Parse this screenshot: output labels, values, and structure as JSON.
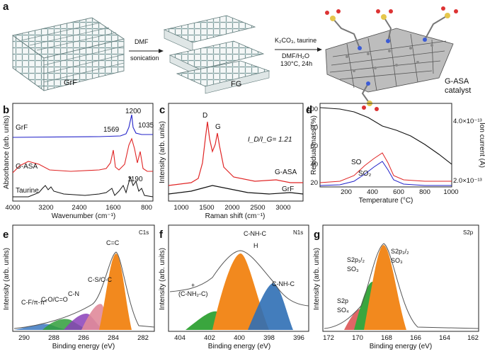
{
  "panels": {
    "a": {
      "label": "a",
      "step1": {
        "line1": "DMF",
        "line2": "sonication"
      },
      "step2": {
        "line1": "K₂CO₃, taurine",
        "line2": "DMF/H₂O",
        "line3": "130°C, 24h"
      },
      "material1": "GrF",
      "material2": "FG",
      "product": {
        "line1": "G-ASA",
        "line2": "catalyst"
      }
    },
    "b": {
      "label": "b",
      "ylabel": "Absorbance (arb. units)",
      "xlabel": "Wavenumber (cm⁻¹)",
      "ticks": [
        "4000",
        "3200",
        "2400",
        "1600",
        "800"
      ],
      "series": [
        "GrF",
        "G-ASA",
        "Taurine"
      ],
      "peaks": [
        "1569",
        "1200",
        "1035",
        "1190"
      ]
    },
    "c": {
      "label": "c",
      "ylabel": "Intensity (arb. units)",
      "xlabel": "Raman shift (cm⁻¹)",
      "ticks": [
        "1000",
        "1500",
        "2000",
        "2500",
        "3000"
      ],
      "series": [
        "G-ASA",
        "GrF"
      ],
      "peaks": [
        "D",
        "G"
      ],
      "ratio_text": "I_D/I_G= 1.21"
    },
    "d": {
      "label": "d",
      "ylabel": "Residual mass (%)",
      "y2label": "Ion current (A)",
      "xlabel": "Temperature (°C)",
      "xticks": [
        "200",
        "400",
        "600",
        "800",
        "1000"
      ],
      "yticks": [
        "100",
        "80",
        "60",
        "40",
        "20"
      ],
      "y2ticks": [
        "4.0×10⁻¹³",
        "2.0×10⁻¹³"
      ],
      "series": [
        "SO",
        "SO₂"
      ]
    },
    "e": {
      "label": "e",
      "corner": "C1s",
      "ylabel": "Intensity (arb. units)",
      "xlabel": "Binding energy (eV)",
      "ticks": [
        "290",
        "288",
        "286",
        "284",
        "282"
      ],
      "components": [
        "C-F/π-π*",
        "C-O/C=O",
        "C-N",
        "C-S/C-C",
        "C=C"
      ]
    },
    "f": {
      "label": "f",
      "corner": "N1s",
      "ylabel": "Intensity (arb. units)",
      "xlabel": "Binding energy (eV)",
      "ticks": [
        "404",
        "402",
        "400",
        "398",
        "396"
      ],
      "components": [
        "(C-NH₂-C)",
        "C-NH-C",
        "C-NH-C"
      ],
      "plus": "+",
      "h_label": "H"
    },
    "g": {
      "label": "g",
      "corner": "S2p",
      "ylabel": "Intensity (arb. units)",
      "xlabel": "Binding energy (eV)",
      "ticks": [
        "172",
        "170",
        "168",
        "166",
        "164",
        "162"
      ],
      "components": [
        "S2p",
        "SO₄",
        "S2p₁/₂",
        "SO₃",
        "S2p₃/₂",
        "SO₃"
      ]
    }
  }
}
